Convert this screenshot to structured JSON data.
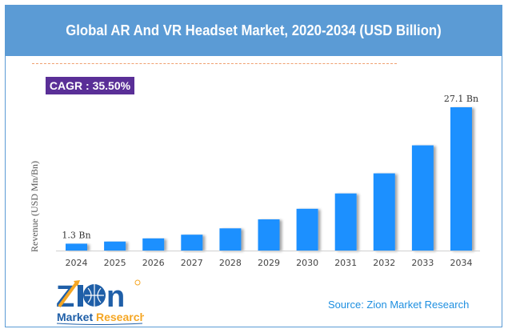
{
  "header": {
    "title": "Global AR And VR Headset Market, 2020-2034 (USD Billion)"
  },
  "cagr": {
    "label": "CAGR : 35.50%"
  },
  "source": {
    "text": "Source: Zion Market Research"
  },
  "logo": {
    "word": "ZION",
    "sub_left": "Market",
    "sub_right": "Research"
  },
  "colors": {
    "header": "#5b9bd5",
    "bar": "#1e90ff",
    "cagr_bg": "#5a2f97",
    "source": "#1e8fe0"
  },
  "chart_data": {
    "type": "bar",
    "title": "Global AR And VR Headset Market, 2020-2034 (USD Billion)",
    "xlabel": "",
    "ylabel": "Revenue (USD Mn/Bn)",
    "categories": [
      "2024",
      "2025",
      "2026",
      "2027",
      "2028",
      "2029",
      "2030",
      "2031",
      "2032",
      "2033",
      "2034"
    ],
    "values": [
      1.3,
      1.7,
      2.3,
      3.0,
      4.2,
      5.9,
      7.9,
      10.8,
      14.6,
      19.9,
      27.1
    ],
    "data_labels": {
      "0": "1.3 Bn",
      "10": "27.1 Bn"
    },
    "ylim": [
      0,
      27.1
    ],
    "grid": false,
    "legend": "none"
  }
}
